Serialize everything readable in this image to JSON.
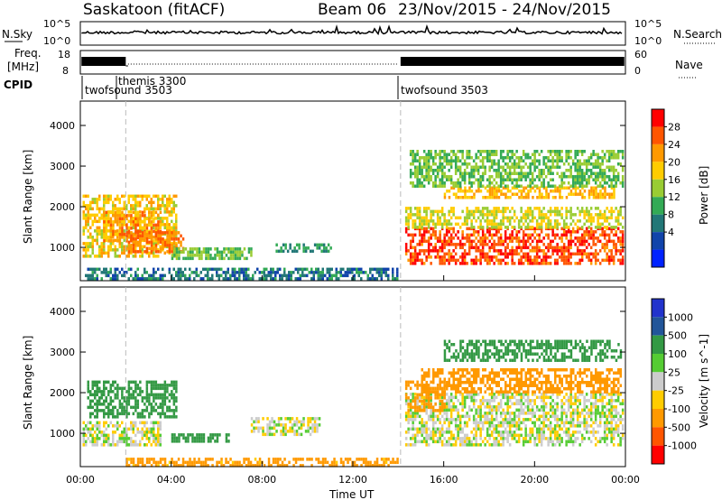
{
  "header": {
    "title": "Saskatoon (fitACF)",
    "beam": "Beam 06",
    "date_range": "23/Nov/2015 - 24/Nov/2015"
  },
  "noise_panel": {
    "left_label": "N.Sky",
    "right_label": "N.Search",
    "left_ticks": [
      "10^5",
      "10^0"
    ],
    "right_ticks": [
      "10^5",
      "10^0"
    ]
  },
  "freq_panel": {
    "left_label_1": "Freq.",
    "left_label_2": "[MHz]",
    "right_label": "Nave",
    "left_ticks": [
      "18",
      "8"
    ],
    "right_ticks": [
      "60",
      "0"
    ]
  },
  "cpid_panel": {
    "label": "CPID",
    "segments": [
      {
        "name": "twofsound 3503",
        "start_hour": 0
      },
      {
        "name": "themis 3300",
        "start_hour": 2
      },
      {
        "name": "twofsound 3503",
        "start_hour": 14.1
      }
    ]
  },
  "axes": {
    "y_label": "Slant Range [km]",
    "x_label": "Time UT",
    "x_ticks": [
      "00:00",
      "04:00",
      "08:00",
      "12:00",
      "16:00",
      "20:00",
      "00:00"
    ],
    "y_ticks": [
      "1000",
      "2000",
      "3000",
      "4000"
    ]
  },
  "chart_data": [
    {
      "type": "heatmap",
      "name": "power",
      "x_range_hours": [
        0,
        24
      ],
      "y_range_km": [
        180,
        4600
      ],
      "colorbar": {
        "label": "Power [dB]",
        "ticks": [
          "28",
          "24",
          "20",
          "16",
          "12",
          "8",
          "4"
        ],
        "colors": [
          "#ff0000",
          "#ff5500",
          "#ff9900",
          "#ffcc00",
          "#99cc33",
          "#33aa55",
          "#227777",
          "#1144aa",
          "#0022ff"
        ]
      },
      "blobs": [
        {
          "t0": 0.1,
          "t1": 4.2,
          "r0": 800,
          "r1": 2300,
          "value": 18
        },
        {
          "t0": 1.0,
          "t1": 3.5,
          "r0": 1200,
          "r1": 1900,
          "value": 22
        },
        {
          "t0": 2.0,
          "t1": 4.5,
          "r0": 900,
          "r1": 1400,
          "value": 24
        },
        {
          "t0": 4.0,
          "t1": 7.5,
          "r0": 700,
          "r1": 1000,
          "value": 12
        },
        {
          "t0": 0.2,
          "t1": 14.0,
          "r0": 250,
          "r1": 500,
          "value": 6
        },
        {
          "t0": 14.3,
          "t1": 23.9,
          "r0": 600,
          "r1": 1500,
          "value": 27
        },
        {
          "t0": 14.3,
          "t1": 23.9,
          "r0": 1500,
          "r1": 2000,
          "value": 16
        },
        {
          "t0": 16.0,
          "t1": 23.5,
          "r0": 2200,
          "r1": 2500,
          "value": 20
        },
        {
          "t0": 14.5,
          "t1": 23.9,
          "r0": 2500,
          "r1": 3400,
          "value": 12
        },
        {
          "t0": 8.5,
          "t1": 11.0,
          "r0": 900,
          "r1": 1100,
          "value": 8
        }
      ]
    },
    {
      "type": "heatmap",
      "name": "velocity",
      "x_range_hours": [
        0,
        24
      ],
      "y_range_km": [
        180,
        4600
      ],
      "colorbar": {
        "label": "Velocity [m s^-1]",
        "ticks": [
          "1000",
          "500",
          "100",
          "25",
          "-25",
          "-100",
          "-500",
          "-1000"
        ],
        "colors": [
          "#2233cc",
          "#225599",
          "#339944",
          "#55cc33",
          "#cccccc",
          "#ffcc00",
          "#ff9900",
          "#ff5500",
          "#ff0000"
        ]
      },
      "blobs": [
        {
          "t0": 0.1,
          "t1": 3.5,
          "r0": 700,
          "r1": 1300,
          "value": 0
        },
        {
          "t0": 0.3,
          "t1": 4.2,
          "r0": 1400,
          "r1": 2300,
          "value": 400
        },
        {
          "t0": 4.0,
          "t1": 6.5,
          "r0": 800,
          "r1": 1000,
          "value": 200
        },
        {
          "t0": 7.5,
          "t1": 10.5,
          "r0": 1000,
          "r1": 1400,
          "value": 0
        },
        {
          "t0": 2.0,
          "t1": 14.0,
          "r0": 200,
          "r1": 400,
          "value": -150
        },
        {
          "t0": 14.3,
          "t1": 23.9,
          "r0": 700,
          "r1": 2000,
          "value": 0
        },
        {
          "t0": 15.0,
          "t1": 23.8,
          "r0": 2000,
          "r1": 2600,
          "value": -300
        },
        {
          "t0": 14.3,
          "t1": 16.0,
          "r0": 1600,
          "r1": 2300,
          "value": -300
        },
        {
          "t0": 16.0,
          "t1": 23.8,
          "r0": 2800,
          "r1": 3300,
          "value": 200
        }
      ]
    }
  ]
}
